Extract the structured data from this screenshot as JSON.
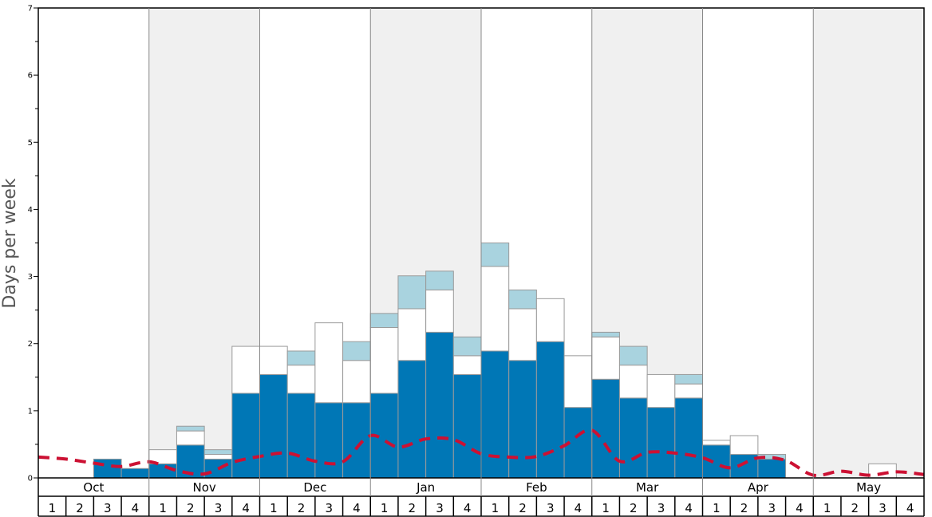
{
  "chart_data": {
    "type": "bar",
    "stacked": true,
    "ylabel": "Days per week",
    "ylim": [
      0,
      7
    ],
    "yticks": [
      "0",
      "1",
      "2",
      "3",
      "4",
      "5",
      "6",
      "7"
    ],
    "months": [
      "Oct",
      "Nov",
      "Dec",
      "Jan",
      "Feb",
      "Mar",
      "Apr",
      "May"
    ],
    "week_labels": [
      "1",
      "2",
      "3",
      "4"
    ],
    "shaded_months": [
      "Nov",
      "Jan",
      "Mar",
      "May"
    ],
    "colors": {
      "dark": "#0077b6",
      "white": "#ffffff",
      "light": "#a9d3df",
      "line": "#cc1133",
      "shade": "#f0f0f0"
    },
    "series": [
      {
        "segment": "dark",
        "values": [
          0,
          0,
          0.28,
          0.14,
          0.21,
          0.49,
          0.28,
          1.26,
          1.54,
          1.26,
          1.12,
          1.12,
          1.26,
          1.75,
          2.17,
          1.54,
          1.89,
          1.75,
          2.03,
          1.05,
          1.47,
          1.19,
          1.05,
          1.19,
          0.49,
          0.35,
          0.28,
          0,
          0,
          0,
          0,
          0
        ]
      },
      {
        "segment": "white",
        "values": [
          0,
          0,
          0,
          0,
          0.21,
          0.21,
          0.07,
          0.7,
          0.42,
          0.42,
          1.19,
          0.63,
          0.98,
          0.77,
          0.63,
          0.28,
          1.26,
          0.77,
          0.64,
          0.77,
          0.63,
          0.49,
          0.49,
          0.21,
          0.07,
          0.28,
          0,
          0,
          0,
          0,
          0.21,
          0
        ]
      },
      {
        "segment": "light",
        "values": [
          0,
          0,
          0,
          0,
          0,
          0.07,
          0.07,
          0,
          0,
          0.21,
          0,
          0.28,
          0.21,
          0.49,
          0.28,
          0.28,
          0.35,
          0.28,
          0,
          0,
          0.07,
          0.28,
          0,
          0.14,
          0,
          0,
          0.07,
          0,
          0,
          0,
          0,
          0
        ]
      }
    ],
    "line": {
      "style": "dashed",
      "values": [
        0.31,
        0.28,
        0.22,
        0.17,
        0.24,
        0.11,
        0.06,
        0.23,
        0.32,
        0.37,
        0.25,
        0.24,
        0.63,
        0.46,
        0.58,
        0.57,
        0.36,
        0.31,
        0.32,
        0.48,
        0.71,
        0.25,
        0.38,
        0.37,
        0.3,
        0.15,
        0.3,
        0.26,
        0.04,
        0.1,
        0.04,
        0.09,
        0.05
      ]
    }
  }
}
